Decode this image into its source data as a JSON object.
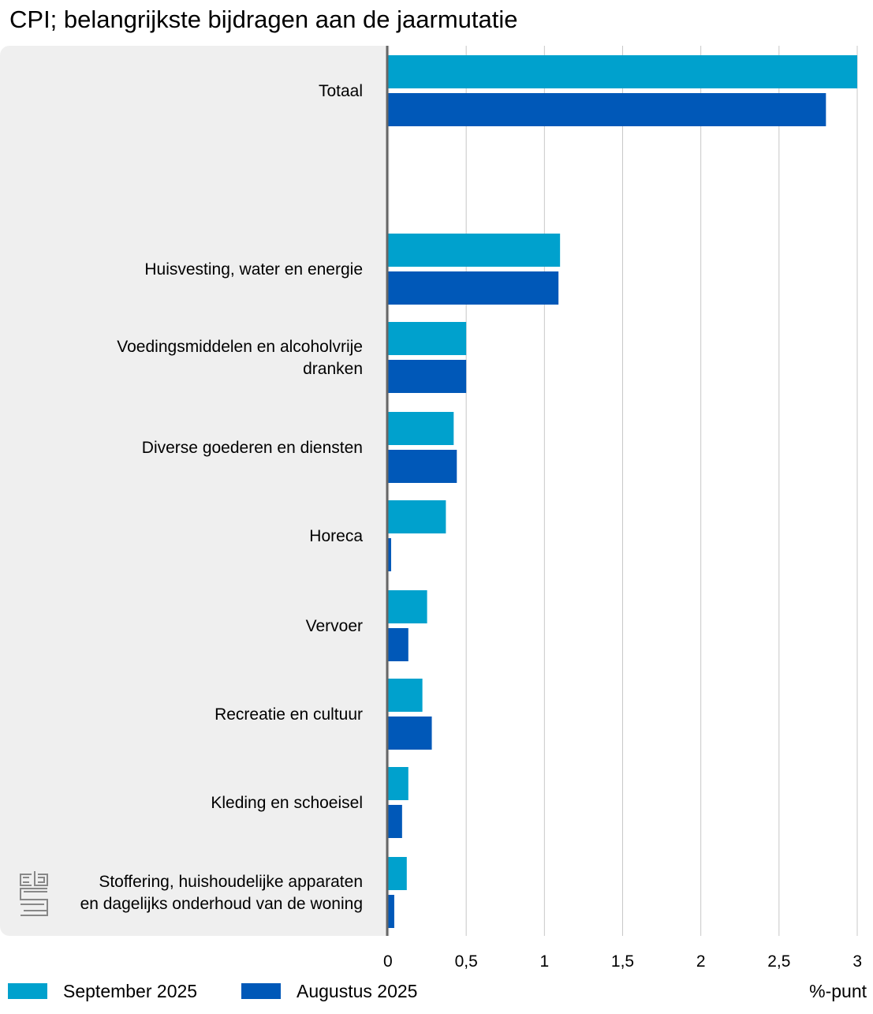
{
  "chart_data": {
    "type": "bar",
    "orientation": "horizontal",
    "title": "CPI; belangrijkste bijdragen aan de jaarmutatie",
    "unit_label": "%-punt",
    "xlim": [
      0,
      3
    ],
    "ticks": [
      {
        "value": 0,
        "label": "0"
      },
      {
        "value": 0.5,
        "label": "0,5"
      },
      {
        "value": 1,
        "label": "1"
      },
      {
        "value": 1.5,
        "label": "1,5"
      },
      {
        "value": 2,
        "label": "2"
      },
      {
        "value": 2.5,
        "label": "2,5"
      },
      {
        "value": 3,
        "label": "3"
      }
    ],
    "grid": true,
    "legend_position": "bottom-left",
    "categories": [
      {
        "lines": [
          "Totaal"
        ]
      },
      {
        "lines": [
          "Huisvesting, water en energie"
        ]
      },
      {
        "lines": [
          "Voedingsmiddelen en alcoholvrije",
          "dranken"
        ]
      },
      {
        "lines": [
          "Diverse goederen en diensten"
        ]
      },
      {
        "lines": [
          "Horeca"
        ]
      },
      {
        "lines": [
          "Vervoer"
        ]
      },
      {
        "lines": [
          "Recreatie en cultuur"
        ]
      },
      {
        "lines": [
          "Kleding en schoeisel"
        ]
      },
      {
        "lines": [
          "Stoffering, huishoudelijke apparaten",
          "en dagelijks onderhoud van de woning"
        ]
      }
    ],
    "series": [
      {
        "name": "September 2025",
        "color": "#00a1cd",
        "values": [
          3.0,
          1.1,
          0.5,
          0.42,
          0.37,
          0.25,
          0.22,
          0.13,
          0.12
        ]
      },
      {
        "name": "Augustus 2025",
        "color": "#0058b8",
        "values": [
          2.8,
          1.09,
          0.5,
          0.44,
          0.02,
          0.13,
          0.28,
          0.09,
          0.04
        ]
      }
    ]
  }
}
